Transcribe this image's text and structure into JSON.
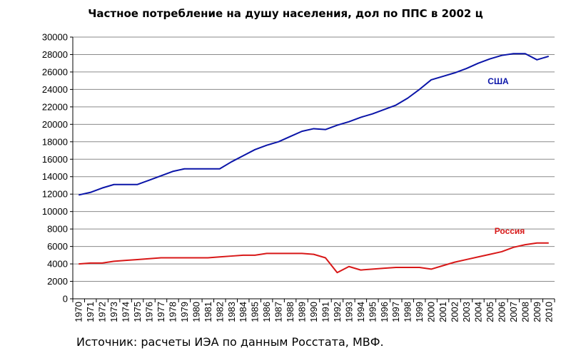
{
  "chart_data": {
    "type": "line",
    "title": "Частное потребление на душу населения, дол по ППС в 2002 ц",
    "xlabel": "",
    "ylabel": "",
    "ylim": [
      0,
      30000
    ],
    "yticks": [
      0,
      2000,
      4000,
      6000,
      8000,
      10000,
      12000,
      14000,
      16000,
      18000,
      20000,
      22000,
      24000,
      26000,
      28000,
      30000
    ],
    "x": [
      1970,
      1971,
      1972,
      1973,
      1974,
      1975,
      1976,
      1977,
      1978,
      1979,
      1980,
      1981,
      1982,
      1983,
      1984,
      1985,
      1986,
      1987,
      1988,
      1989,
      1990,
      1991,
      1992,
      1993,
      1994,
      1995,
      1996,
      1997,
      1998,
      1999,
      2000,
      2001,
      2002,
      2003,
      2004,
      2005,
      2006,
      2007,
      2008,
      2009,
      2010
    ],
    "grid": true,
    "legend": "inline labels",
    "series": [
      {
        "name": "США",
        "color": "#0a14a8",
        "values": [
          11900,
          12200,
          12700,
          13100,
          13100,
          13100,
          13600,
          14100,
          14600,
          14900,
          14900,
          14900,
          14900,
          15700,
          16400,
          17100,
          17600,
          18000,
          18600,
          19200,
          19500,
          19400,
          19900,
          20300,
          20800,
          21200,
          21700,
          22200,
          23000,
          24000,
          25100,
          25500,
          25900,
          26400,
          27000,
          27500,
          27900,
          28100,
          28100,
          27400,
          27800
        ]
      },
      {
        "name": "Россия",
        "color": "#d81818",
        "values": [
          4000,
          4100,
          4100,
          4300,
          4400,
          4500,
          4600,
          4700,
          4700,
          4700,
          4700,
          4700,
          4800,
          4900,
          5000,
          5000,
          5200,
          5200,
          5200,
          5200,
          5100,
          4700,
          3000,
          3700,
          3300,
          3400,
          3500,
          3600,
          3600,
          3600,
          3400,
          3800,
          4200,
          4500,
          4800,
          5100,
          5400,
          5900,
          6200,
          6400,
          6400
        ]
      }
    ],
    "annotations": []
  },
  "source": "Источник: расчеты ИЭА по данным Росстата, МВФ."
}
